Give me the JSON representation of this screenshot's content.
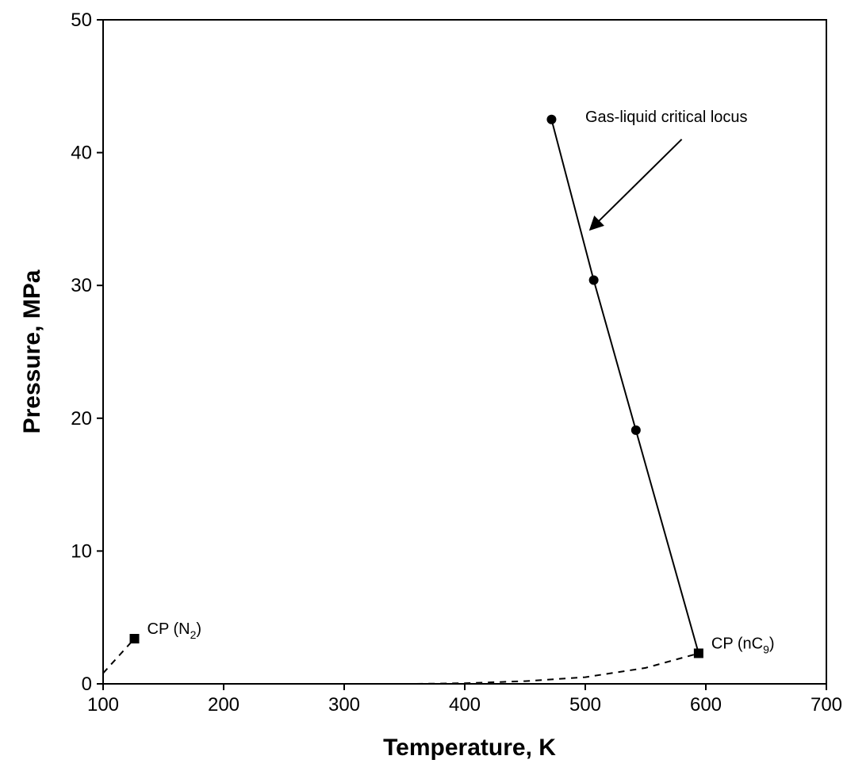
{
  "chart_data": {
    "type": "scatter",
    "xlabel": "Temperature, K",
    "ylabel": "Pressure, MPa",
    "xlim": [
      100,
      700
    ],
    "ylim": [
      0,
      50
    ],
    "xticks": [
      100,
      200,
      300,
      400,
      500,
      600,
      700
    ],
    "yticks": [
      0,
      10,
      20,
      30,
      40,
      50
    ],
    "x_tick_labels": [
      "100",
      "200",
      "300",
      "400",
      "500",
      "600",
      "700"
    ],
    "y_tick_labels": [
      "0",
      "10",
      "20",
      "30",
      "40",
      "50"
    ],
    "grid": false,
    "legend": "none",
    "series": [
      {
        "style": "solid-line-circles",
        "x": [
          472,
          507,
          542,
          594
        ],
        "y": [
          42.5,
          30.4,
          19.1,
          2.3
        ]
      },
      {
        "style": "dashed",
        "x": [
          360,
          400,
          450,
          500,
          550,
          594
        ],
        "y": [
          0.0,
          0.05,
          0.2,
          0.5,
          1.2,
          2.3
        ]
      },
      {
        "style": "dashed",
        "x": [
          100,
          126
        ],
        "y": [
          0.8,
          3.4
        ]
      }
    ],
    "critical_points": [
      {
        "label_main": "CP (N",
        "label_sub": "2",
        "label_end": ")",
        "x": 126,
        "y": 3.4
      },
      {
        "label_main": "CP (nC",
        "label_sub": "9",
        "label_end": ")",
        "x": 594,
        "y": 2.3
      }
    ],
    "annotations": [
      {
        "text": "Gas-liquid critical locus",
        "text_x": 500,
        "text_y": 42.3,
        "arrow_from": [
          580,
          41.0
        ],
        "arrow_to": [
          504,
          34.2
        ]
      }
    ]
  }
}
